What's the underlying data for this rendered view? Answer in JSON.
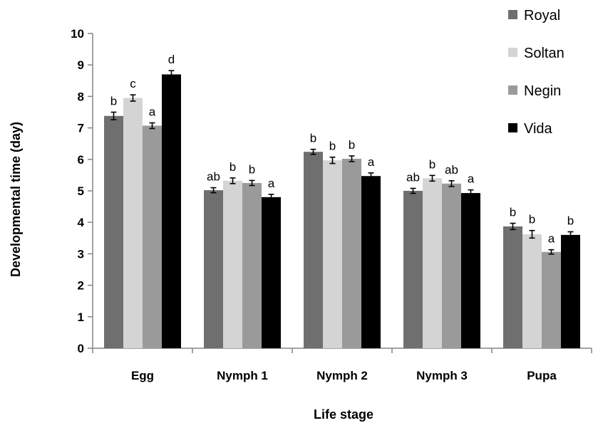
{
  "chart_data": {
    "type": "bar",
    "title": "",
    "xlabel": "Life stage",
    "ylabel": "Developmental time (day)",
    "ylim": [
      0,
      10
    ],
    "yticks": [
      0,
      1,
      2,
      3,
      4,
      5,
      6,
      7,
      8,
      9,
      10
    ],
    "categories": [
      "Egg",
      "Nymph 1",
      "Nymph 2",
      "Nymph 3",
      "Pupa"
    ],
    "legend_position": "top-right",
    "grid": false,
    "series": [
      {
        "name": "Royal",
        "color": "#6f6f6f",
        "values": [
          7.38,
          5.02,
          6.24,
          5.0,
          3.87
        ],
        "errors": [
          0.12,
          0.08,
          0.08,
          0.08,
          0.1
        ],
        "labels": [
          "b",
          "ab",
          "b",
          "ab",
          "b"
        ]
      },
      {
        "name": "Soltan",
        "color": "#d4d4d4",
        "values": [
          7.95,
          5.32,
          5.97,
          5.4,
          3.62
        ],
        "errors": [
          0.1,
          0.09,
          0.1,
          0.09,
          0.12
        ],
        "labels": [
          "c",
          "b",
          "b",
          "b",
          "b"
        ]
      },
      {
        "name": "Negin",
        "color": "#9a9a9a",
        "values": [
          7.07,
          5.25,
          6.02,
          5.23,
          3.06
        ],
        "errors": [
          0.09,
          0.08,
          0.09,
          0.09,
          0.07
        ],
        "labels": [
          "a",
          "b",
          "b",
          "ab",
          "a"
        ]
      },
      {
        "name": "Vida",
        "color": "#000000",
        "values": [
          8.7,
          4.8,
          5.47,
          4.93,
          3.6
        ],
        "errors": [
          0.12,
          0.09,
          0.1,
          0.1,
          0.1
        ],
        "labels": [
          "d",
          "a",
          "a",
          "a",
          "b"
        ]
      }
    ]
  }
}
